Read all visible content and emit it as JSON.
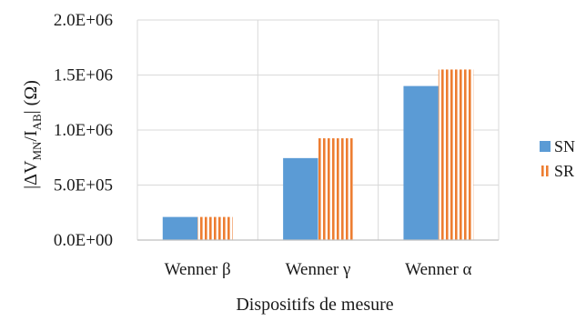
{
  "chart_data": {
    "type": "bar",
    "title": "",
    "xlabel": "Dispositifs de mesure",
    "ylabel_parts": {
      "open": "|ΔV",
      "sub1": "MN",
      "mid": "/I",
      "sub2": "AB",
      "close": "| (Ω)"
    },
    "categories": [
      "Wenner β",
      "Wenner γ",
      "Wenner α"
    ],
    "series": [
      {
        "name": "SN",
        "values": [
          210000,
          745000,
          1400000
        ],
        "color": "#5b9bd5",
        "pattern": "solid"
      },
      {
        "name": "SR",
        "values": [
          210000,
          925000,
          1550000
        ],
        "color": "#ed7d31",
        "pattern": "vertical-stripes"
      }
    ],
    "ylim": [
      0,
      2000000
    ],
    "yticks": [
      0,
      500000,
      1000000,
      1500000,
      2000000
    ],
    "ytick_labels": [
      "0.0E+00",
      "5.0E+05",
      "1.0E+06",
      "1.5E+06",
      "2.0E+06"
    ],
    "grid": true,
    "legend_position": "right"
  }
}
